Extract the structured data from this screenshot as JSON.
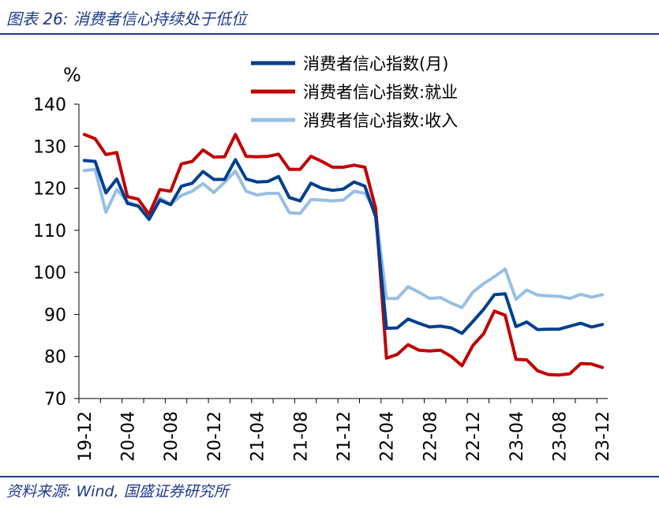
{
  "header": {
    "title": "图表 26:  消费者信心持续处于低位"
  },
  "footer": {
    "source": "资料来源:  Wind, 国盛证券研究所"
  },
  "chart_data": {
    "type": "line",
    "unit": "%",
    "ylim": [
      70,
      140
    ],
    "yticks": [
      70,
      80,
      90,
      100,
      110,
      120,
      130,
      140
    ],
    "xlim": [
      "2019-12",
      "2023-12"
    ],
    "xticks": [
      "19-12",
      "20-04",
      "20-08",
      "20-12",
      "21-04",
      "21-08",
      "21-12",
      "22-04",
      "22-08",
      "22-12",
      "23-04",
      "23-08",
      "23-12"
    ],
    "x": [
      "2019-12",
      "2020-01",
      "2020-02",
      "2020-03",
      "2020-04",
      "2020-05",
      "2020-06",
      "2020-07",
      "2020-08",
      "2020-09",
      "2020-10",
      "2020-11",
      "2020-12",
      "2021-01",
      "2021-02",
      "2021-03",
      "2021-04",
      "2021-05",
      "2021-06",
      "2021-07",
      "2021-08",
      "2021-09",
      "2021-10",
      "2021-11",
      "2021-12",
      "2022-01",
      "2022-02",
      "2022-03",
      "2022-04",
      "2022-05",
      "2022-06",
      "2022-07",
      "2022-08",
      "2022-09",
      "2022-10",
      "2022-11",
      "2022-12",
      "2023-01",
      "2023-02",
      "2023-03",
      "2023-04",
      "2023-05",
      "2023-06",
      "2023-07",
      "2023-08",
      "2023-09",
      "2023-10",
      "2023-11",
      "2023-12"
    ],
    "legend_position": "top-right",
    "series": [
      {
        "name": "消费者信心指数(月)",
        "color": "#003f8f",
        "values": [
          126.6,
          126.4,
          118.9,
          122.2,
          116.4,
          115.8,
          112.6,
          117.2,
          116.1,
          120.5,
          121.2,
          124.0,
          122.1,
          122.1,
          126.8,
          122.2,
          121.5,
          121.6,
          122.8,
          117.8,
          117.0,
          121.2,
          120.0,
          119.5,
          119.8,
          121.5,
          120.5,
          113.2,
          86.7,
          86.8,
          88.9,
          87.9,
          87.0,
          87.2,
          86.8,
          85.5,
          88.3,
          91.2,
          94.7,
          94.9,
          87.1,
          88.2,
          86.4,
          86.5,
          86.5,
          87.2,
          87.9,
          87.0,
          87.6
        ]
      },
      {
        "name": "消费者信心指数:就业",
        "color": "#c00000",
        "values": [
          132.8,
          131.8,
          128.0,
          128.5,
          118.0,
          117.4,
          113.8,
          119.7,
          119.3,
          125.8,
          126.4,
          129.1,
          127.4,
          127.5,
          132.8,
          127.6,
          127.5,
          127.6,
          128.1,
          124.5,
          124.5,
          127.6,
          126.4,
          125.0,
          125.0,
          125.5,
          125.0,
          115.2,
          79.6,
          80.5,
          82.8,
          81.5,
          81.3,
          81.5,
          80.0,
          77.8,
          82.6,
          85.4,
          90.8,
          89.8,
          79.3,
          79.2,
          76.6,
          75.7,
          75.6,
          75.9,
          78.3,
          78.2,
          77.4
        ]
      },
      {
        "name": "消费者信心指数:收入",
        "color": "#98bfe4",
        "values": [
          124.2,
          124.5,
          114.3,
          119.7,
          116.8,
          115.7,
          113.6,
          117.7,
          116.2,
          118.3,
          119.3,
          121.1,
          119.0,
          121.4,
          124.1,
          119.3,
          118.4,
          118.8,
          118.8,
          114.2,
          114.0,
          117.3,
          117.2,
          117.0,
          117.2,
          119.3,
          118.8,
          114.6,
          93.8,
          93.8,
          96.6,
          95.3,
          93.8,
          94.0,
          92.7,
          91.6,
          95.3,
          97.3,
          99.0,
          100.8,
          93.6,
          95.8,
          94.6,
          94.4,
          94.3,
          93.8,
          94.8,
          94.1,
          94.7
        ]
      }
    ]
  }
}
